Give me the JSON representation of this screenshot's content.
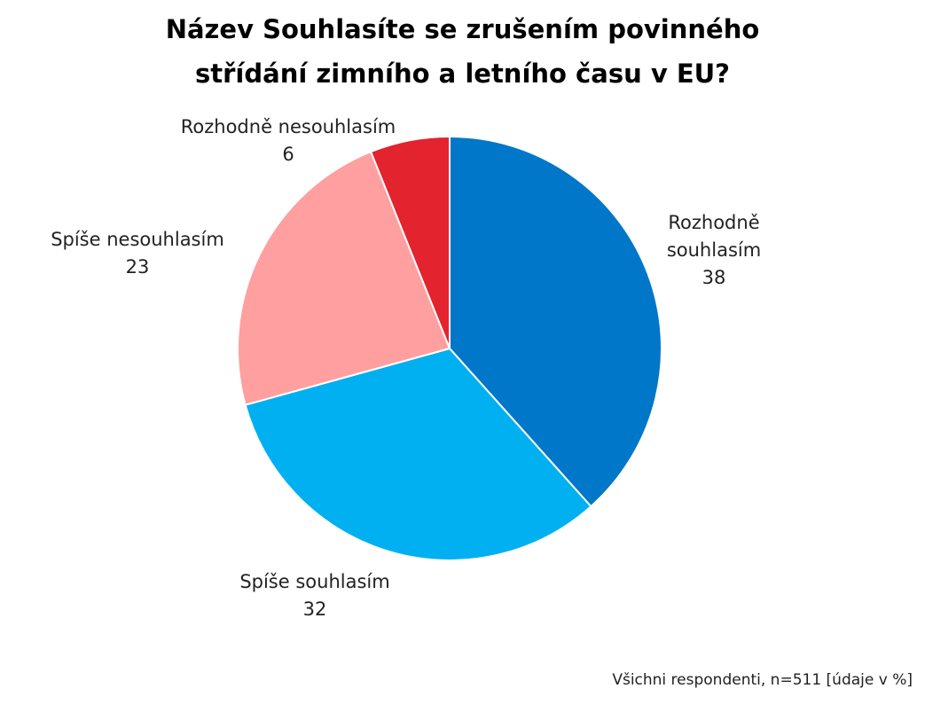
{
  "chart_data": {
    "type": "pie",
    "title": [
      "Název Souhlasíte se zrušením povinného",
      "střídání zimního a letního času v EU?"
    ],
    "categories": [
      "Rozhodně souhlasím",
      "Spíše souhlasím",
      "Spíše nesouhlasím",
      "Rozhodně nesouhlasím"
    ],
    "values": [
      38,
      32,
      23,
      6
    ],
    "colors": [
      "#0077c8",
      "#00b0f0",
      "#ff9f9f",
      "#e3232d"
    ],
    "note": "Všichni respondenti, n=511 [údaje v %]"
  }
}
